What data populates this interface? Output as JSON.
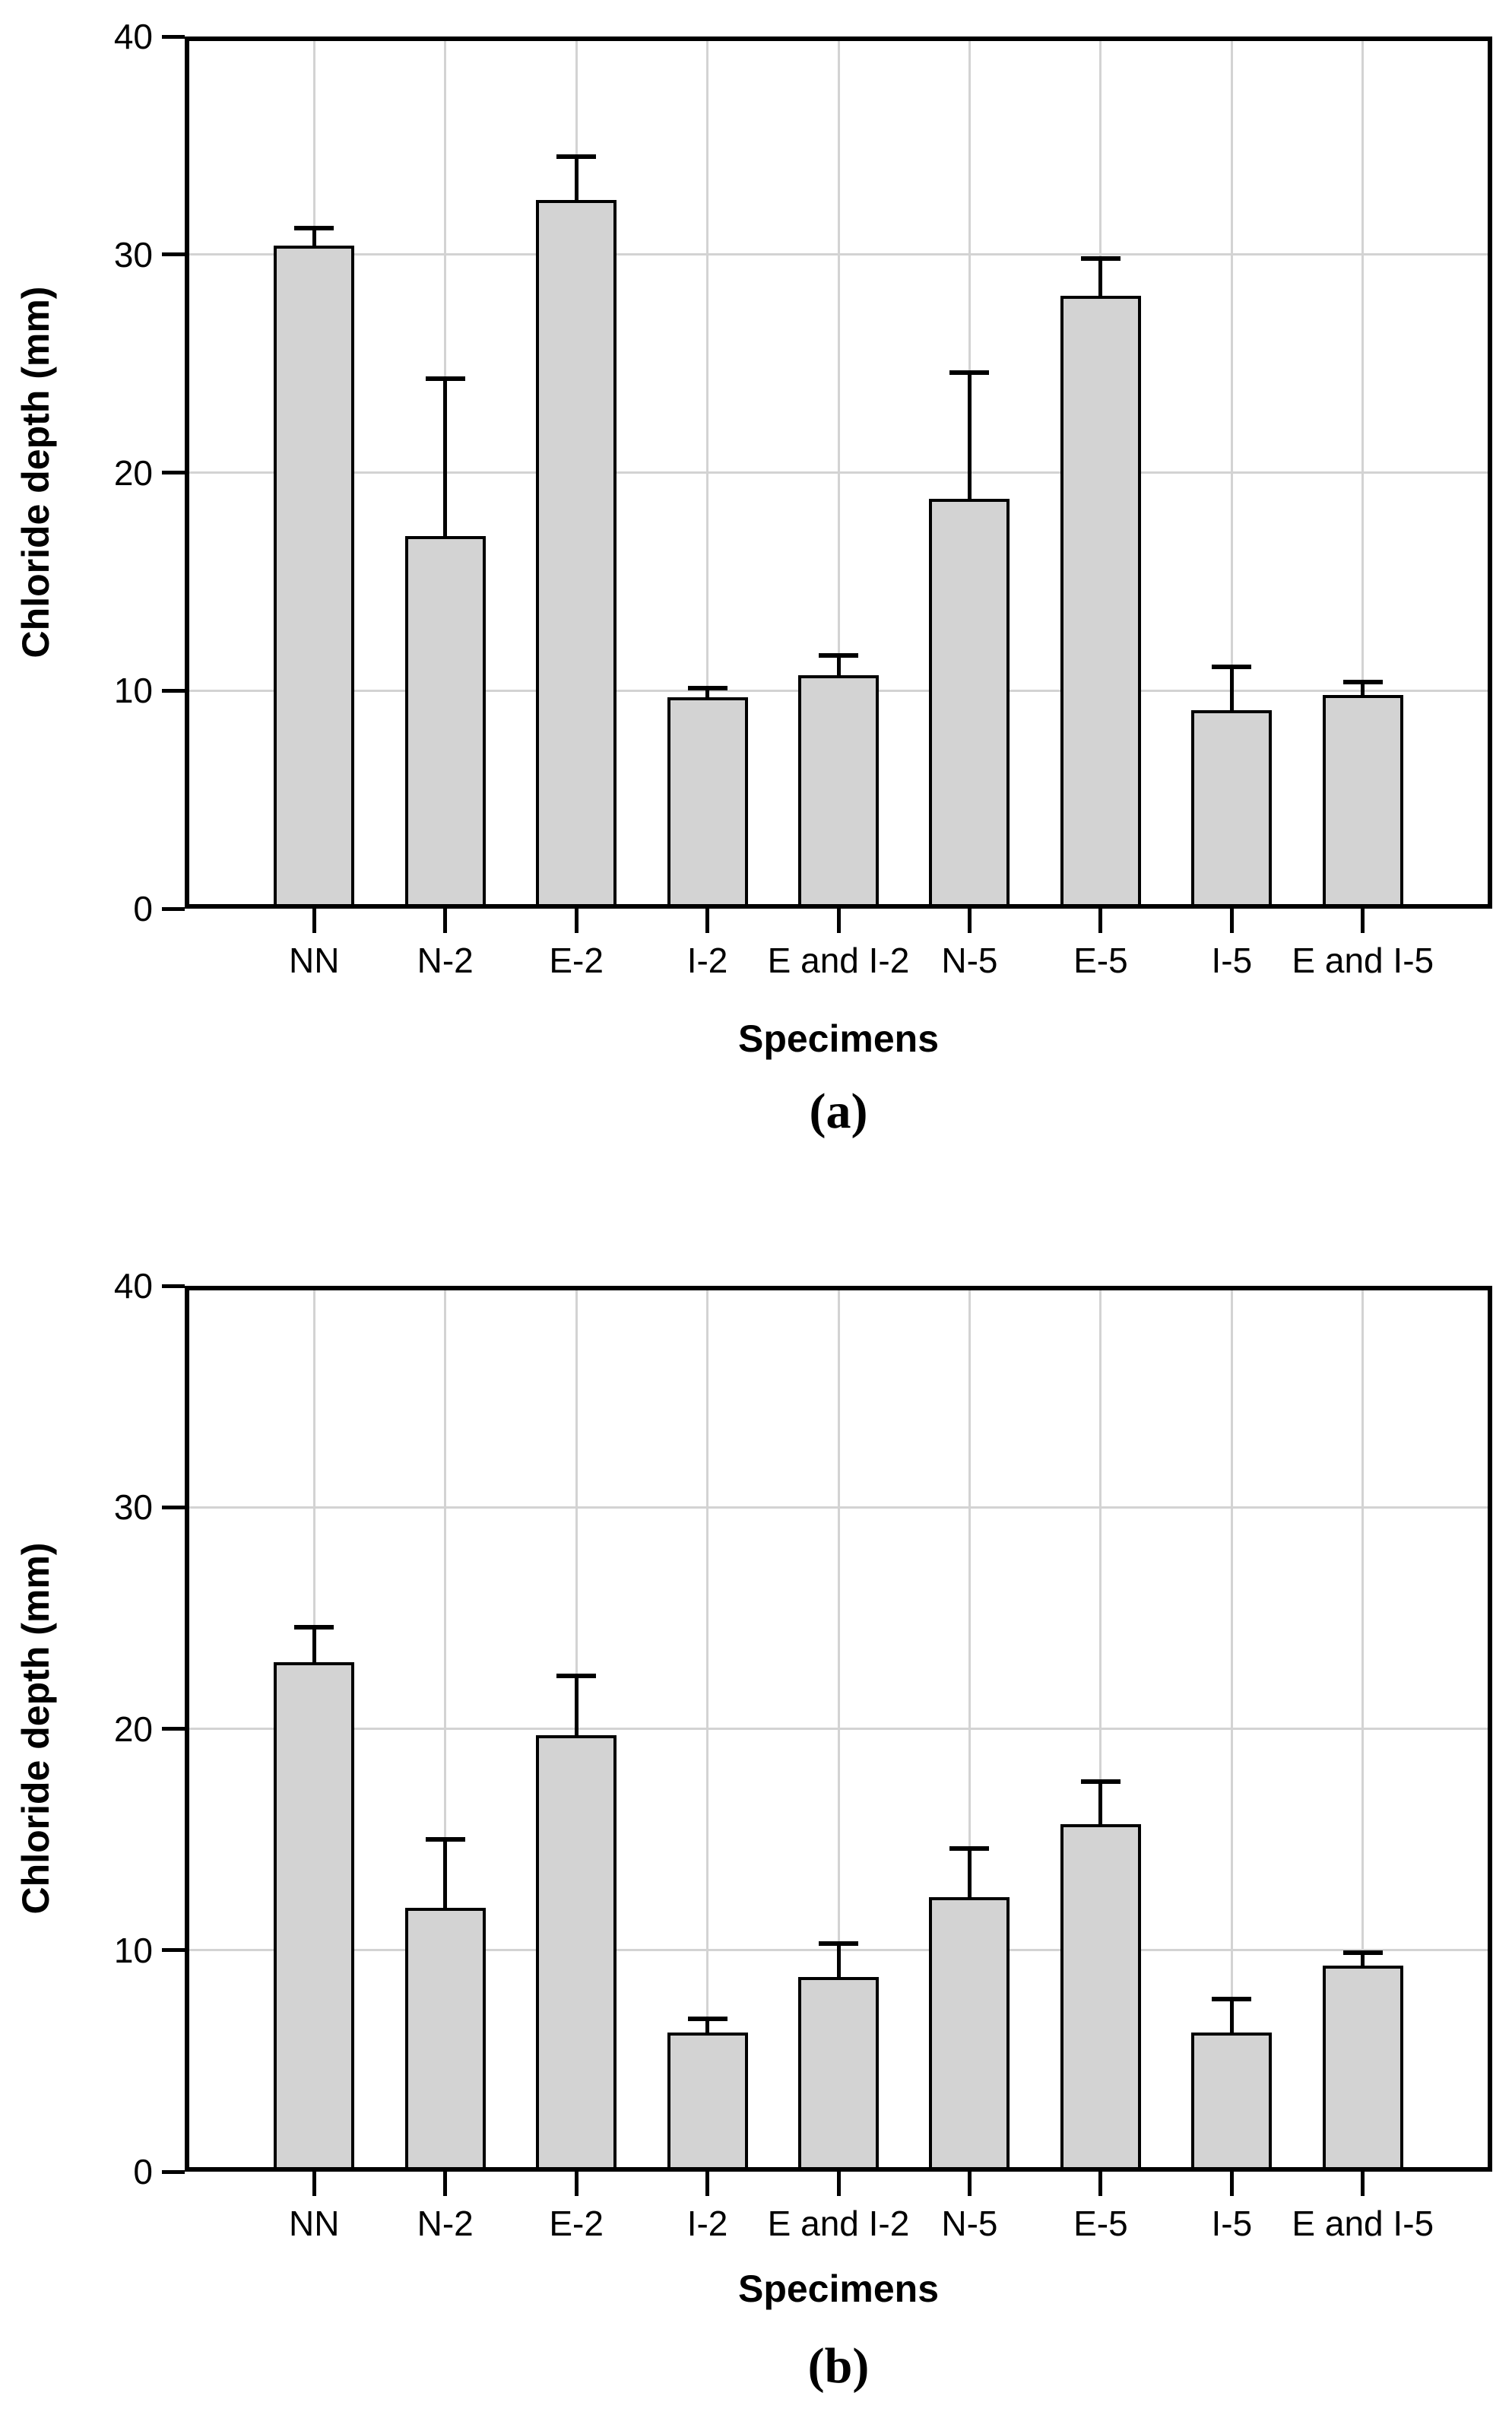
{
  "figure": {
    "background": "#ffffff"
  },
  "colors": {
    "bar_fill": "#d3d3d3",
    "bar_border": "#000000",
    "gridline": "#d3d3d3",
    "axis": "#000000"
  },
  "chart_data": [
    {
      "type": "bar",
      "panel_label": "(a)",
      "xlabel": "Specimens",
      "ylabel": "Chloride depth (mm)",
      "ylim": [
        0,
        40
      ],
      "yticks": [
        0,
        10,
        20,
        30,
        40
      ],
      "grid": "light gray horizontal lines at y ticks and vertical lines at each category center",
      "legend": "none",
      "error_bars": "upper only, black caps",
      "categories": [
        "NN",
        "N-2",
        "E-2",
        "I-2",
        "E and I-2",
        "N-5",
        "E-5",
        "I-5",
        "E and I-5"
      ],
      "values": [
        30.4,
        17.1,
        32.5,
        9.7,
        10.7,
        18.8,
        28.1,
        9.1,
        9.8
      ],
      "errors_plus": [
        0.8,
        7.2,
        2.0,
        0.4,
        0.9,
        5.8,
        1.7,
        2.0,
        0.6
      ]
    },
    {
      "type": "bar",
      "panel_label": "(b)",
      "xlabel": "Specimens",
      "ylabel": "Chloride depth (mm)",
      "ylim": [
        0,
        40
      ],
      "yticks": [
        0,
        10,
        20,
        30,
        40
      ],
      "grid": "light gray horizontal lines at y ticks and vertical lines at each category center",
      "legend": "none",
      "error_bars": "upper only, black caps",
      "categories": [
        "NN",
        "N-2",
        "E-2",
        "I-2",
        "E and I-2",
        "N-5",
        "E-5",
        "I-5",
        "E and I-5"
      ],
      "values": [
        23.0,
        11.9,
        19.7,
        6.3,
        8.8,
        12.4,
        15.7,
        6.3,
        9.3
      ],
      "errors_plus": [
        1.6,
        3.1,
        2.7,
        0.6,
        1.5,
        2.2,
        1.9,
        1.5,
        0.6
      ]
    }
  ]
}
